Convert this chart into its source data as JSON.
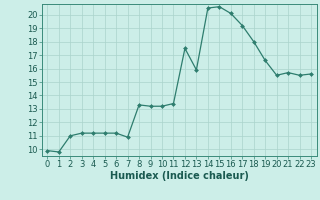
{
  "x": [
    0,
    1,
    2,
    3,
    4,
    5,
    6,
    7,
    8,
    9,
    10,
    11,
    12,
    13,
    14,
    15,
    16,
    17,
    18,
    19,
    20,
    21,
    22,
    23
  ],
  "y": [
    9.9,
    9.8,
    11.0,
    11.2,
    11.2,
    11.2,
    11.2,
    10.9,
    13.3,
    13.2,
    13.2,
    13.4,
    17.5,
    15.9,
    20.5,
    20.6,
    20.1,
    19.2,
    18.0,
    16.6,
    15.5,
    15.7,
    15.5,
    15.6
  ],
  "xlabel": "Humidex (Indice chaleur)",
  "xlim": [
    -0.5,
    23.5
  ],
  "ylim": [
    9.5,
    20.8
  ],
  "yticks": [
    10,
    11,
    12,
    13,
    14,
    15,
    16,
    17,
    18,
    19,
    20
  ],
  "xticks": [
    0,
    1,
    2,
    3,
    4,
    5,
    6,
    7,
    8,
    9,
    10,
    11,
    12,
    13,
    14,
    15,
    16,
    17,
    18,
    19,
    20,
    21,
    22,
    23
  ],
  "line_color": "#2e7d6e",
  "marker_color": "#2e7d6e",
  "bg_color": "#cceee8",
  "grid_color_major": "#aad4cc",
  "grid_color_minor": "#bbddd8",
  "xlabel_fontsize": 7,
  "tick_fontsize": 6
}
